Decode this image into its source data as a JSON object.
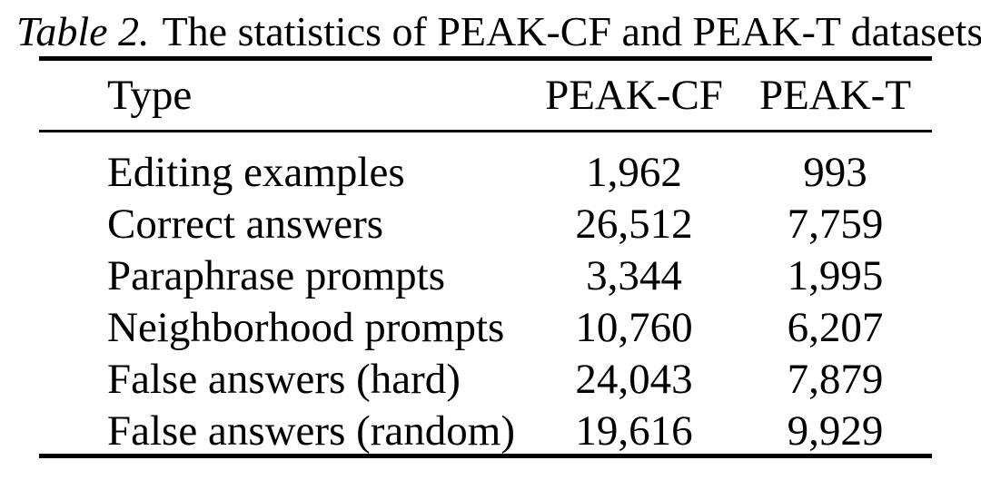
{
  "caption": {
    "label": "Table 2.",
    "text": "The statistics of PEAK-CF and PEAK-T datasets."
  },
  "table": {
    "columns": [
      "Type",
      "PEAK-CF",
      "PEAK-T"
    ],
    "rows": [
      [
        "Editing examples",
        "1,962",
        "993"
      ],
      [
        "Correct answers",
        "26,512",
        "7,759"
      ],
      [
        "Paraphrase prompts",
        "3,344",
        "1,995"
      ],
      [
        "Neighborhood prompts",
        "10,760",
        "6,207"
      ],
      [
        "False answers (hard)",
        "24,043",
        "7,879"
      ],
      [
        "False answers (random)",
        "19,616",
        "9,929"
      ]
    ]
  },
  "colors": {
    "background": "#ffffff",
    "text": "#000000",
    "rule": "#000000"
  }
}
